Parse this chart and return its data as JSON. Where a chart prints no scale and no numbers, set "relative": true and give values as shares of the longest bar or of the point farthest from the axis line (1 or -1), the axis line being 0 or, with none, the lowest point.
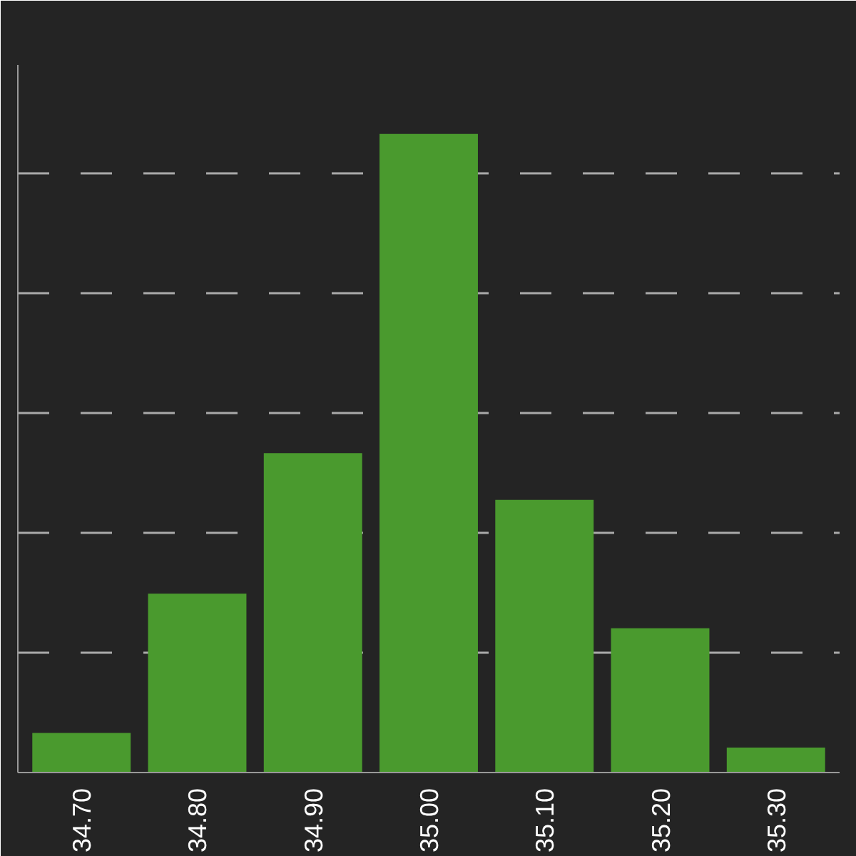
{
  "chart_data": {
    "type": "bar",
    "relative": true,
    "categories": [
      "34.70",
      "34.80",
      "34.90",
      "35.00",
      "35.10",
      "35.20",
      "35.30"
    ],
    "values": [
      0.062,
      0.28,
      0.5,
      1,
      0.427,
      0.226,
      0.039
    ],
    "color": "#4a9a2e",
    "grid": "y"
  }
}
